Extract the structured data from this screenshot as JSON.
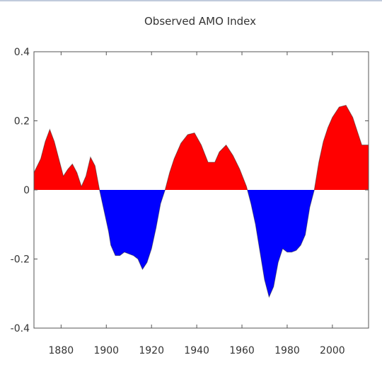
{
  "chart_data": {
    "type": "area",
    "title": "Observed AMO Index",
    "xlabel": "",
    "ylabel": "",
    "xlim": [
      1868,
      2016
    ],
    "ylim": [
      -0.4,
      0.4
    ],
    "x_ticks": [
      1880,
      1900,
      1920,
      1940,
      1960,
      1980,
      2000
    ],
    "x_tick_labels": [
      "1880",
      "1900",
      "1920",
      "1940",
      "1960",
      "1980",
      "2000"
    ],
    "y_ticks": [
      0.4,
      0.2,
      0,
      -0.2,
      -0.4
    ],
    "y_tick_labels": [
      "0.4",
      "0.2",
      "0",
      "-0.2",
      "-0.4"
    ],
    "positive_color": "#ff0000",
    "negative_color": "#0000ff",
    "grid": false,
    "series": [
      {
        "x": [
          1868,
          1871,
          1873,
          1875,
          1877,
          1879,
          1881,
          1883,
          1885,
          1887,
          1889,
          1891,
          1893,
          1895,
          1897,
          1899,
          1901,
          1902,
          1904,
          1906,
          1908,
          1910,
          1912,
          1914,
          1916,
          1918,
          1920,
          1922,
          1924,
          1926,
          1928,
          1930,
          1933,
          1936,
          1939,
          1942,
          1945,
          1948,
          1950,
          1953,
          1956,
          1959,
          1962,
          1964,
          1966,
          1968,
          1970,
          1972,
          1974,
          1976,
          1978,
          1980,
          1982,
          1984,
          1986,
          1988,
          1990,
          1992,
          1994,
          1996,
          1998,
          2000,
          2003,
          2006,
          2009,
          2011,
          2013,
          2016
        ],
        "values": [
          0.05,
          0.09,
          0.14,
          0.175,
          0.14,
          0.09,
          0.04,
          0.06,
          0.075,
          0.05,
          0.01,
          0.04,
          0.095,
          0.07,
          0.0,
          -0.06,
          -0.12,
          -0.16,
          -0.19,
          -0.19,
          -0.18,
          -0.185,
          -0.19,
          -0.2,
          -0.23,
          -0.21,
          -0.17,
          -0.11,
          -0.04,
          0.0,
          0.05,
          0.09,
          0.135,
          0.16,
          0.165,
          0.13,
          0.08,
          0.08,
          0.11,
          0.13,
          0.1,
          0.06,
          0.01,
          -0.04,
          -0.1,
          -0.18,
          -0.26,
          -0.31,
          -0.28,
          -0.21,
          -0.17,
          -0.18,
          -0.18,
          -0.175,
          -0.16,
          -0.13,
          -0.05,
          0.0,
          0.08,
          0.14,
          0.18,
          0.21,
          0.24,
          0.245,
          0.21,
          0.17,
          0.13,
          0.13
        ]
      }
    ]
  }
}
